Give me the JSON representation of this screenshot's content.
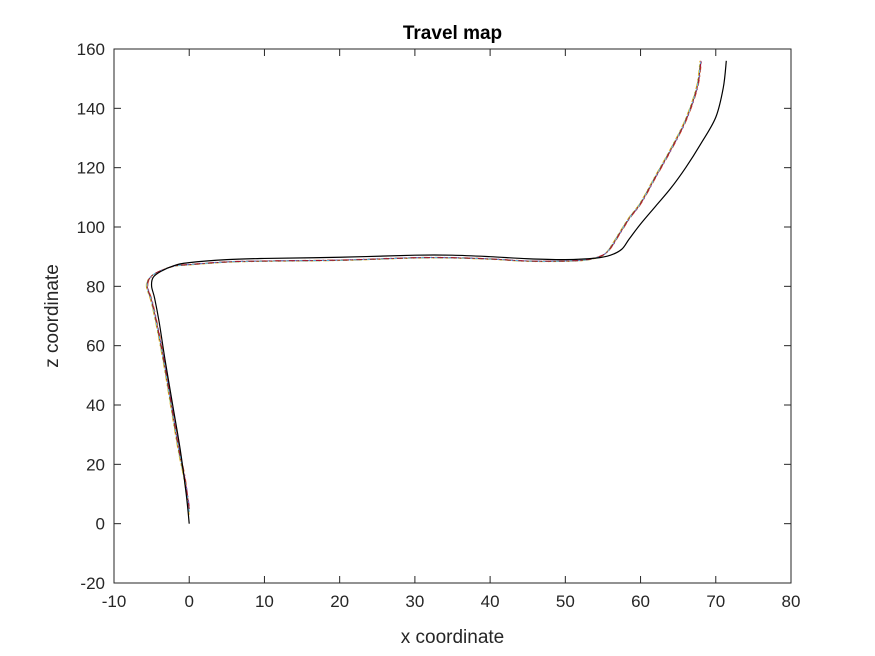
{
  "chart_data": {
    "type": "line",
    "title": "Travel map",
    "xlabel": "x coordinate",
    "ylabel": "z coordinate",
    "xlim": [
      -10,
      80
    ],
    "ylim": [
      -20,
      160
    ],
    "xticks": [
      -10,
      0,
      10,
      20,
      30,
      40,
      50,
      60,
      70,
      80
    ],
    "yticks": [
      -20,
      0,
      20,
      40,
      60,
      80,
      100,
      120,
      140,
      160
    ],
    "grid": false,
    "legend": "none",
    "series": [
      {
        "color": "#000000",
        "style": "solid",
        "points": [
          [
            0,
            0
          ],
          [
            -0.4,
            10
          ],
          [
            -1.2,
            25
          ],
          [
            -2.2,
            40
          ],
          [
            -3.2,
            55
          ],
          [
            -4,
            68
          ],
          [
            -4.6,
            76
          ],
          [
            -5,
            80
          ],
          [
            -4.8,
            83
          ],
          [
            -3.8,
            85
          ],
          [
            -2,
            87
          ],
          [
            0,
            88
          ],
          [
            5,
            89
          ],
          [
            10,
            89.4
          ],
          [
            20,
            89.8
          ],
          [
            30,
            90.5
          ],
          [
            35,
            90.5
          ],
          [
            40,
            90
          ],
          [
            45,
            89.3
          ],
          [
            50,
            89
          ],
          [
            54,
            89.5
          ],
          [
            56,
            90.5
          ],
          [
            57.5,
            92.5
          ],
          [
            58.5,
            96
          ],
          [
            60,
            101
          ],
          [
            62,
            107
          ],
          [
            64,
            113
          ],
          [
            66,
            120
          ],
          [
            68,
            128
          ],
          [
            70,
            137
          ],
          [
            71,
            147
          ],
          [
            71.4,
            156
          ]
        ]
      },
      {
        "color": "#0072BD",
        "style": "dashdot",
        "points": [
          [
            0,
            5
          ],
          [
            -0.6,
            15
          ],
          [
            -1.4,
            25
          ],
          [
            -2.4,
            40
          ],
          [
            -3.4,
            55
          ],
          [
            -4.3,
            67
          ],
          [
            -5,
            75
          ],
          [
            -5.6,
            80
          ],
          [
            -5.2,
            83
          ],
          [
            -4,
            85
          ],
          [
            -2,
            86.8
          ],
          [
            0,
            87.3
          ],
          [
            5,
            88.2
          ],
          [
            10,
            88.5
          ],
          [
            20,
            88.8
          ],
          [
            30,
            89.6
          ],
          [
            35,
            89.6
          ],
          [
            40,
            89.2
          ],
          [
            45,
            88.5
          ],
          [
            50,
            88.5
          ],
          [
            53,
            89
          ],
          [
            55,
            90.5
          ],
          [
            56,
            93
          ],
          [
            57,
            97
          ],
          [
            58.5,
            103
          ],
          [
            60,
            108
          ],
          [
            62,
            117
          ],
          [
            64,
            126
          ],
          [
            66,
            136
          ],
          [
            67.5,
            147
          ],
          [
            68,
            156
          ]
        ]
      },
      {
        "color": "#D95319",
        "style": "dashdot",
        "points": [
          [
            0,
            4
          ],
          [
            -0.5,
            15
          ],
          [
            -1.3,
            25
          ],
          [
            -2.3,
            40
          ],
          [
            -3.3,
            55
          ],
          [
            -4.2,
            67
          ],
          [
            -4.9,
            75
          ],
          [
            -5.5,
            80
          ],
          [
            -5.1,
            83
          ],
          [
            -3.9,
            85.2
          ],
          [
            -1.9,
            86.9
          ],
          [
            0,
            87.4
          ],
          [
            5,
            88.3
          ],
          [
            10,
            88.6
          ],
          [
            20,
            88.9
          ],
          [
            30,
            89.7
          ],
          [
            35,
            89.7
          ],
          [
            40,
            89.3
          ],
          [
            45,
            88.6
          ],
          [
            50,
            88.6
          ],
          [
            53,
            89.1
          ],
          [
            55,
            90.6
          ],
          [
            56.1,
            93
          ],
          [
            57.1,
            97
          ],
          [
            58.6,
            103
          ],
          [
            60.1,
            108
          ],
          [
            62.1,
            117
          ],
          [
            64.1,
            126
          ],
          [
            66.1,
            136
          ],
          [
            67.6,
            147
          ],
          [
            68.1,
            156
          ]
        ]
      },
      {
        "color": "#EDB120",
        "style": "dashdot",
        "points": [
          [
            0,
            3
          ],
          [
            -0.7,
            15
          ],
          [
            -1.5,
            25
          ],
          [
            -2.5,
            40
          ],
          [
            -3.5,
            55
          ],
          [
            -4.4,
            67
          ],
          [
            -5.1,
            75
          ],
          [
            -5.7,
            80
          ],
          [
            -5.3,
            82.8
          ],
          [
            -4.1,
            84.9
          ],
          [
            -2.1,
            86.7
          ],
          [
            0,
            87.2
          ],
          [
            5,
            88.1
          ],
          [
            10,
            88.4
          ],
          [
            20,
            88.7
          ],
          [
            30,
            89.5
          ],
          [
            35,
            89.5
          ],
          [
            40,
            89.1
          ],
          [
            45,
            88.4
          ],
          [
            50,
            88.4
          ],
          [
            53,
            88.9
          ],
          [
            55,
            90.4
          ],
          [
            55.9,
            93
          ],
          [
            56.9,
            97
          ],
          [
            58.4,
            103
          ],
          [
            59.9,
            108
          ],
          [
            61.9,
            117
          ],
          [
            63.9,
            126
          ],
          [
            65.9,
            136
          ],
          [
            67.4,
            147
          ],
          [
            67.9,
            156
          ]
        ]
      },
      {
        "color": "#7E2F8E",
        "style": "dashdot",
        "points": [
          [
            0,
            6
          ],
          [
            -0.55,
            15
          ],
          [
            -1.35,
            25
          ],
          [
            -2.35,
            40
          ],
          [
            -3.35,
            55
          ],
          [
            -4.25,
            67
          ],
          [
            -4.95,
            75
          ],
          [
            -5.55,
            80
          ],
          [
            -5.15,
            83.1
          ],
          [
            -3.95,
            85.1
          ],
          [
            -1.95,
            86.85
          ],
          [
            0,
            87.35
          ],
          [
            5,
            88.25
          ],
          [
            10,
            88.55
          ],
          [
            20,
            88.85
          ],
          [
            30,
            89.65
          ],
          [
            35,
            89.65
          ],
          [
            40,
            89.25
          ],
          [
            45,
            88.55
          ],
          [
            50,
            88.55
          ],
          [
            53,
            89.05
          ],
          [
            55,
            90.55
          ],
          [
            56.05,
            93
          ],
          [
            57.05,
            97
          ],
          [
            58.55,
            103
          ],
          [
            60.05,
            108
          ],
          [
            62.05,
            117
          ],
          [
            64.05,
            126
          ],
          [
            66.05,
            136
          ],
          [
            67.55,
            147
          ],
          [
            68.05,
            156
          ]
        ]
      },
      {
        "color": "#77AC30",
        "style": "dashdot",
        "points": [
          [
            0,
            5
          ],
          [
            -0.65,
            15
          ],
          [
            -1.45,
            25
          ],
          [
            -2.45,
            40
          ],
          [
            -3.45,
            55
          ],
          [
            -4.35,
            67
          ],
          [
            -5.05,
            75
          ],
          [
            -5.65,
            80
          ],
          [
            -5.25,
            82.9
          ],
          [
            -4.05,
            84.95
          ],
          [
            -2.05,
            86.75
          ],
          [
            0,
            87.25
          ],
          [
            5,
            88.15
          ],
          [
            10,
            88.45
          ],
          [
            20,
            88.75
          ],
          [
            30,
            89.55
          ],
          [
            35,
            89.55
          ],
          [
            40,
            89.15
          ],
          [
            45,
            88.45
          ],
          [
            50,
            88.45
          ],
          [
            53,
            88.95
          ],
          [
            55,
            90.45
          ],
          [
            55.95,
            93
          ],
          [
            56.95,
            97
          ],
          [
            58.45,
            103
          ],
          [
            59.95,
            108
          ],
          [
            61.95,
            117
          ],
          [
            63.95,
            126
          ],
          [
            65.95,
            136
          ],
          [
            67.45,
            147
          ],
          [
            67.95,
            156
          ]
        ]
      },
      {
        "color": "#4DBEEE",
        "style": "dashdot",
        "points": [
          [
            0,
            4
          ],
          [
            -0.6,
            15
          ],
          [
            -1.4,
            25
          ],
          [
            -2.4,
            40
          ],
          [
            -3.4,
            55
          ],
          [
            -4.3,
            67
          ],
          [
            -5,
            75
          ],
          [
            -5.6,
            80
          ],
          [
            -5.2,
            83
          ],
          [
            -4,
            85
          ],
          [
            -2,
            86.8
          ],
          [
            0,
            87.3
          ],
          [
            5,
            88.2
          ],
          [
            10,
            88.5
          ],
          [
            20,
            88.8
          ],
          [
            30,
            89.6
          ],
          [
            35,
            89.6
          ],
          [
            40,
            89.2
          ],
          [
            45,
            88.5
          ],
          [
            50,
            88.5
          ],
          [
            53,
            89
          ],
          [
            55,
            90.5
          ],
          [
            56,
            93
          ],
          [
            57,
            97
          ],
          [
            58.5,
            103
          ],
          [
            60,
            108
          ],
          [
            62,
            117
          ],
          [
            64,
            126
          ],
          [
            66,
            136
          ],
          [
            67.5,
            147
          ],
          [
            68,
            156
          ]
        ]
      },
      {
        "color": "#A2142F",
        "style": "dashdot",
        "points": [
          [
            0,
            5
          ],
          [
            -0.58,
            15
          ],
          [
            -1.38,
            25
          ],
          [
            -2.38,
            40
          ],
          [
            -3.38,
            55
          ],
          [
            -4.28,
            67
          ],
          [
            -4.98,
            75
          ],
          [
            -5.58,
            80
          ],
          [
            -5.18,
            83.05
          ],
          [
            -3.98,
            85.05
          ],
          [
            -1.98,
            86.82
          ],
          [
            0,
            87.32
          ],
          [
            5,
            88.22
          ],
          [
            10,
            88.52
          ],
          [
            20,
            88.82
          ],
          [
            30,
            89.62
          ],
          [
            35,
            89.62
          ],
          [
            40,
            89.22
          ],
          [
            45,
            88.52
          ],
          [
            50,
            88.52
          ],
          [
            53,
            89.02
          ],
          [
            55,
            90.52
          ],
          [
            56.02,
            93
          ],
          [
            57.02,
            97
          ],
          [
            58.52,
            103
          ],
          [
            60.02,
            108
          ],
          [
            62.02,
            117
          ],
          [
            64.02,
            126
          ],
          [
            66.02,
            136
          ],
          [
            67.52,
            147
          ],
          [
            68.02,
            156
          ]
        ]
      }
    ]
  }
}
